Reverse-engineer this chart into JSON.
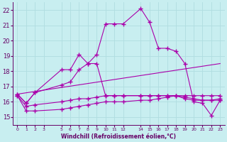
{
  "xlabel": "Windchill (Refroidissement éolien,°C)",
  "bg_color": "#c8eef0",
  "grid_color": "#b0dde0",
  "line_color": "#aa00aa",
  "ylim": [
    14.5,
    22.5
  ],
  "xlim": [
    -0.5,
    23.5
  ],
  "yticks": [
    15,
    16,
    17,
    18,
    19,
    20,
    21,
    22
  ],
  "xticks": [
    0,
    1,
    2,
    3,
    5,
    6,
    7,
    8,
    9,
    10,
    11,
    12,
    14,
    15,
    16,
    17,
    18,
    19,
    20,
    21,
    22,
    23
  ],
  "series1_x": [
    0,
    1,
    2,
    5,
    6,
    7,
    8,
    9,
    10,
    11,
    12,
    14,
    15,
    16,
    17,
    18,
    19,
    20,
    21,
    22,
    23
  ],
  "series1_y": [
    16.5,
    15.9,
    16.6,
    18.1,
    18.1,
    19.1,
    18.5,
    19.1,
    21.1,
    21.1,
    21.1,
    22.1,
    21.2,
    19.5,
    19.5,
    19.3,
    18.5,
    16.0,
    15.9,
    15.1,
    16.1
  ],
  "series2_x": [
    0,
    1,
    2,
    5,
    6,
    7,
    8,
    9,
    10,
    11,
    12,
    14,
    15,
    16,
    17,
    18,
    19,
    20,
    21,
    22,
    23
  ],
  "series2_y": [
    16.5,
    15.9,
    16.6,
    17.1,
    17.3,
    18.1,
    18.5,
    18.5,
    16.4,
    16.4,
    16.4,
    16.4,
    16.4,
    16.4,
    16.4,
    16.4,
    16.2,
    16.1,
    16.1,
    16.1,
    16.1
  ],
  "series3_x": [
    0,
    1,
    2,
    5,
    6,
    7,
    8,
    9,
    10,
    11,
    12,
    14,
    15,
    16,
    17,
    18,
    19,
    20,
    21,
    22,
    23
  ],
  "series3_y": [
    16.4,
    15.7,
    15.8,
    16.0,
    16.1,
    16.2,
    16.2,
    16.3,
    16.4,
    16.4,
    16.4,
    16.4,
    16.4,
    16.4,
    16.4,
    16.4,
    16.3,
    16.2,
    16.1,
    16.1,
    16.2
  ],
  "series4_x": [
    0,
    1,
    2,
    5,
    6,
    7,
    8,
    9,
    10,
    11,
    12,
    14,
    15,
    16,
    17,
    18,
    19,
    20,
    21,
    22,
    23
  ],
  "series4_y": [
    16.4,
    15.4,
    15.4,
    15.5,
    15.6,
    15.7,
    15.8,
    15.9,
    16.0,
    16.0,
    16.0,
    16.1,
    16.1,
    16.2,
    16.3,
    16.4,
    16.4,
    16.4,
    16.4,
    16.4,
    16.4
  ],
  "refline_x": [
    0,
    23
  ],
  "refline_y": [
    16.5,
    18.5
  ]
}
